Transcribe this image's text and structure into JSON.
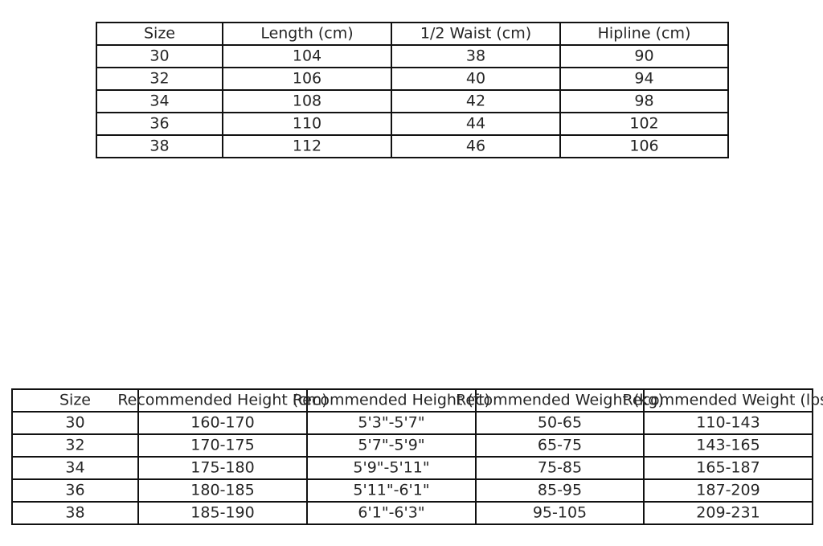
{
  "table_top": {
    "headers": [
      "Size",
      "Length (cm)",
      "1/2 Waist (cm)",
      "Hipline (cm)"
    ],
    "rows": [
      [
        "30",
        "104",
        "38",
        "90"
      ],
      [
        "32",
        "106",
        "40",
        "94"
      ],
      [
        "34",
        "108",
        "42",
        "98"
      ],
      [
        "36",
        "110",
        "44",
        "102"
      ],
      [
        "38",
        "112",
        "46",
        "106"
      ]
    ]
  },
  "table_bottom": {
    "headers": [
      "Size",
      "Recommended Height (cm)",
      "Recommended Height (ft)",
      "Recommended Weight (kg)",
      "Recommended Weight (lbs)"
    ],
    "rows": [
      [
        "30",
        "160-170",
        "5'3\"-5'7\"",
        "50-65",
        "110-143"
      ],
      [
        "32",
        "170-175",
        "5'7\"-5'9\"",
        "65-75",
        "143-165"
      ],
      [
        "34",
        "175-180",
        "5'9\"-5'11\"",
        "75-85",
        "165-187"
      ],
      [
        "36",
        "180-185",
        "5'11\"-6'1\"",
        "85-95",
        "187-209"
      ],
      [
        "38",
        "185-190",
        "6'1\"-6'3\"",
        "95-105",
        "209-231"
      ]
    ]
  }
}
